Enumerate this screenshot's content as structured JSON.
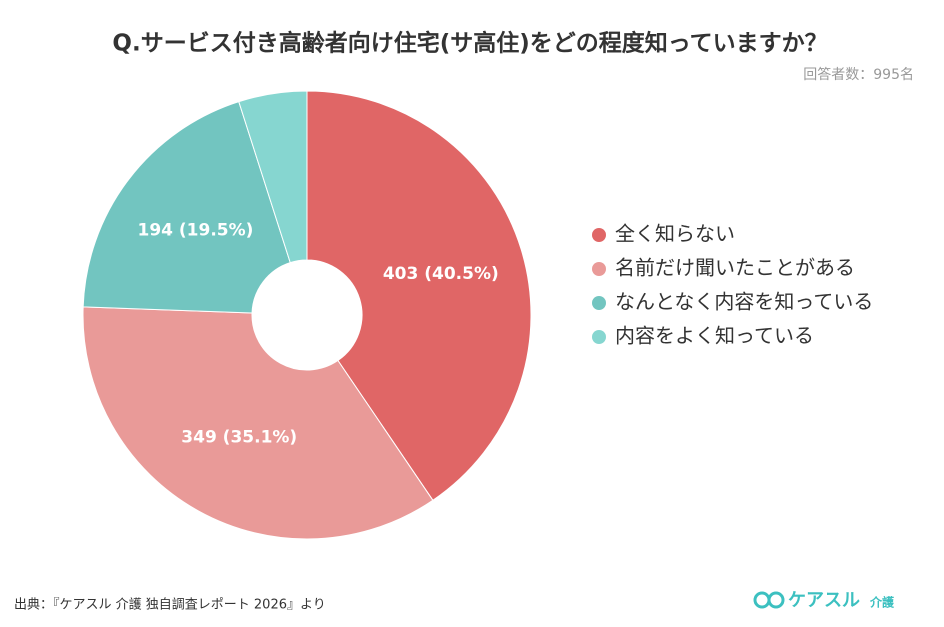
{
  "chart_data": {
    "type": "donut",
    "title": "Q.サービス付き高齢者向け住宅(サ高住)をどの程度知っていますか？",
    "subtitle": "回答者数：995名",
    "categories": [
      "全く知らない",
      "名前だけ聞いたことがある",
      "なんとなく内容を知っている",
      "内容をよく知っている"
    ],
    "values": [
      403,
      349,
      194,
      49
    ],
    "value_labels": [
      "403 (40.5%)",
      "349 (35.1%)",
      "194 (19.5%)",
      null
    ],
    "colors": [
      "#e06666",
      "#e99a98",
      "#72c5c0",
      "#86d6d0"
    ],
    "legend": "right"
  },
  "footer": {
    "source": "出典：『ケアスル 介護 独自調査レポート 2026』より",
    "logo": "ケアスル",
    "logo_sub": "介護"
  }
}
